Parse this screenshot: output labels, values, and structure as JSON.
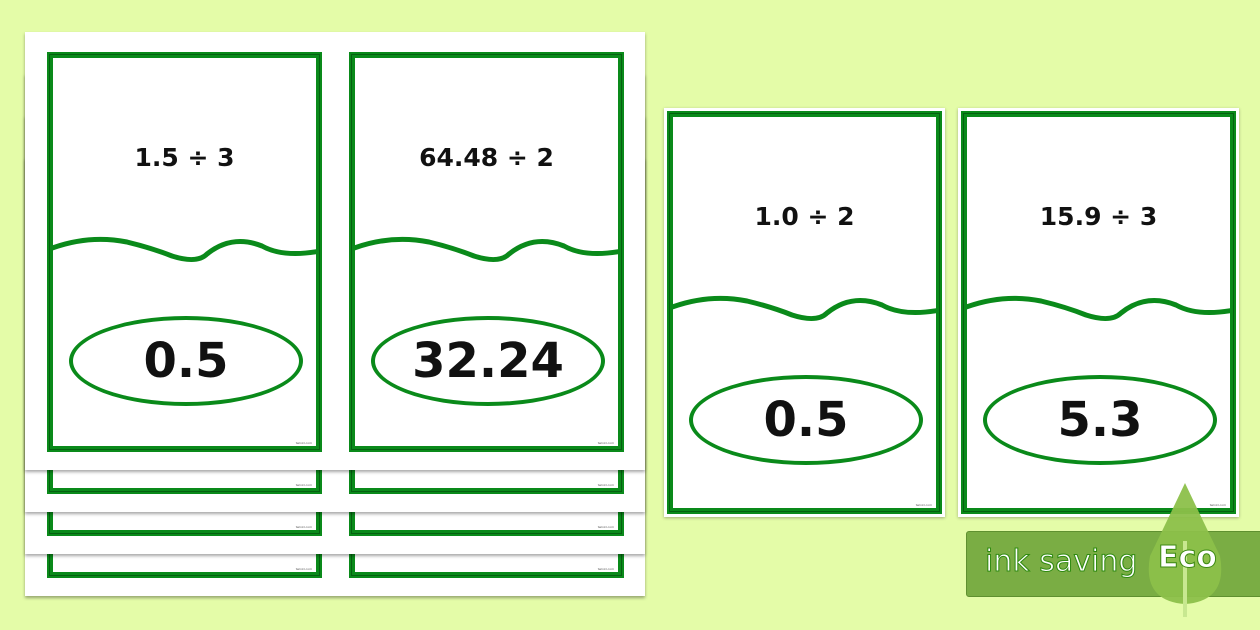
{
  "sheet_cards": [
    {
      "question": "1.5 ÷ 3",
      "answer": "0.5"
    },
    {
      "question": "64.48 ÷ 2",
      "answer": "32.24"
    }
  ],
  "loose_cards": [
    {
      "question": "1.0 ÷ 2",
      "answer": "0.5"
    },
    {
      "question": "15.9 ÷ 3",
      "answer": "5.3"
    }
  ],
  "footer": "twinkl.com",
  "banner": {
    "label": "ink saving",
    "badge": "Eco"
  },
  "colors": {
    "background": "#e4fca8",
    "card_border": "#0a8a1a",
    "banner": "#7aad44",
    "leaf": "#8cc04a"
  }
}
